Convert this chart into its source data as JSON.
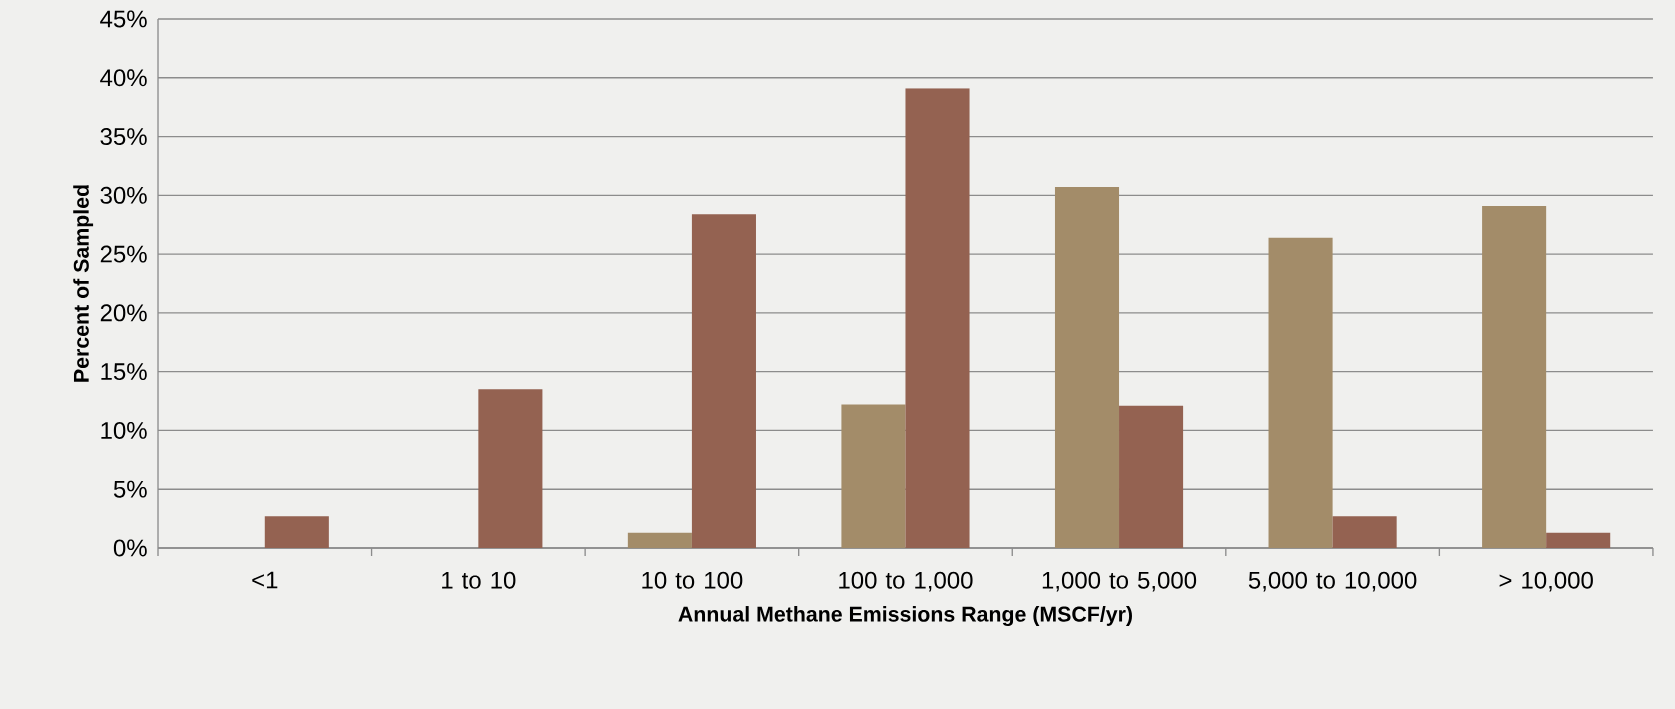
{
  "chart_data": {
    "type": "bar",
    "xlabel": "Annual Methane Emissions Range (MSCF/yr)",
    "ylabel": "Percent of Sampled",
    "categories": [
      "<1",
      "1 to 10",
      "10 to 100",
      "100 to 1,000",
      "1,000 to 5,000",
      "5,000 to 10,000",
      "> 10,000"
    ],
    "series": [
      {
        "color": "#a38c69",
        "values": [
          0,
          0,
          1.3,
          12.2,
          30.7,
          26.4,
          29.1
        ]
      },
      {
        "color": "#946251",
        "values": [
          2.7,
          13.5,
          28.4,
          39.1,
          12.1,
          2.7,
          1.3
        ]
      }
    ],
    "ylim": [
      0,
      45
    ],
    "yticks": [
      {
        "value": 0,
        "label": "0%"
      },
      {
        "value": 5,
        "label": "5%"
      },
      {
        "value": 10,
        "label": "10%"
      },
      {
        "value": 15,
        "label": "15%"
      },
      {
        "value": 20,
        "label": "20%"
      },
      {
        "value": 25,
        "label": "25%"
      },
      {
        "value": 30,
        "label": "30%"
      },
      {
        "value": 35,
        "label": "35%"
      },
      {
        "value": 40,
        "label": "40%"
      },
      {
        "value": 45,
        "label": "45%"
      }
    ],
    "grid": "y"
  }
}
